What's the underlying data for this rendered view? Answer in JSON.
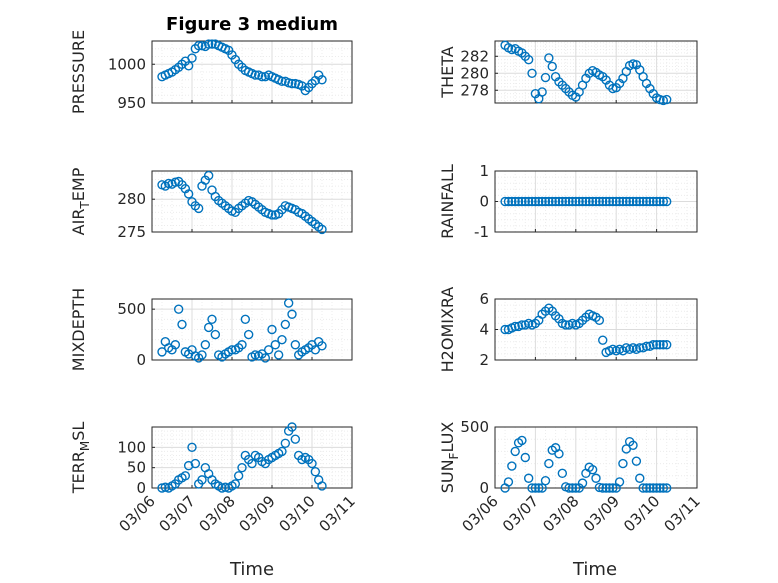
{
  "figure": {
    "title": "Figure 3 medium",
    "xlabel": "Time",
    "date_ticks": [
      "03/06",
      "03/07",
      "03/08",
      "03/09",
      "03/10",
      "03/11"
    ],
    "marker_color": "#0072bd",
    "grid": true,
    "marker": "open-circle"
  },
  "chart_data": [
    {
      "type": "scatter",
      "ylabel": "PRESSURE",
      "ylim": [
        950,
        1030
      ],
      "yticks": [
        950,
        1000
      ],
      "x": [
        "03/06 06:00",
        "03/06 08:00",
        "03/06 10:00",
        "03/06 12:00",
        "03/06 14:00",
        "03/06 16:00",
        "03/06 18:00",
        "03/06 20:00",
        "03/06 22:00",
        "03/07 00:00",
        "03/07 02:00",
        "03/07 04:00",
        "03/07 06:00",
        "03/07 08:00",
        "03/07 10:00",
        "03/07 12:00",
        "03/07 14:00",
        "03/07 16:00",
        "03/07 18:00",
        "03/07 20:00",
        "03/07 22:00",
        "03/08 00:00",
        "03/08 02:00",
        "03/08 04:00",
        "03/08 06:00",
        "03/08 08:00",
        "03/08 10:00",
        "03/08 12:00",
        "03/08 14:00",
        "03/08 16:00",
        "03/08 18:00",
        "03/08 20:00",
        "03/08 22:00",
        "03/09 00:00",
        "03/09 02:00",
        "03/09 04:00",
        "03/09 06:00",
        "03/09 08:00",
        "03/09 10:00",
        "03/09 12:00",
        "03/09 14:00",
        "03/09 16:00",
        "03/09 18:00",
        "03/09 20:00",
        "03/09 22:00",
        "03/10 00:00",
        "03/10 02:00",
        "03/10 04:00",
        "03/10 06:00"
      ],
      "y": [
        984,
        986,
        988,
        990,
        993,
        996,
        1000,
        1004,
        998,
        1008,
        1020,
        1024,
        1024,
        1023,
        1026,
        1026,
        1026,
        1024,
        1022,
        1020,
        1018,
        1012,
        1006,
        1000,
        996,
        992,
        990,
        988,
        986,
        986,
        984,
        984,
        986,
        984,
        982,
        980,
        978,
        978,
        976,
        975,
        975,
        974,
        972,
        966,
        970,
        975,
        979,
        986,
        980
      ]
    },
    {
      "type": "scatter",
      "ylabel": "THETA",
      "ylim": [
        276.5,
        283.8
      ],
      "yticks": [
        278,
        280,
        282
      ],
      "x": [
        "03/06 06:00",
        "03/06 08:00",
        "03/06 10:00",
        "03/06 12:00",
        "03/06 14:00",
        "03/06 16:00",
        "03/06 18:00",
        "03/06 20:00",
        "03/06 22:00",
        "03/07 00:00",
        "03/07 02:00",
        "03/07 04:00",
        "03/07 06:00",
        "03/07 08:00",
        "03/07 10:00",
        "03/07 12:00",
        "03/07 14:00",
        "03/07 16:00",
        "03/07 18:00",
        "03/07 20:00",
        "03/07 22:00",
        "03/08 00:00",
        "03/08 02:00",
        "03/08 04:00",
        "03/08 06:00",
        "03/08 08:00",
        "03/08 10:00",
        "03/08 12:00",
        "03/08 14:00",
        "03/08 16:00",
        "03/08 18:00",
        "03/08 20:00",
        "03/08 22:00",
        "03/09 00:00",
        "03/09 02:00",
        "03/09 04:00",
        "03/09 06:00",
        "03/09 08:00",
        "03/09 10:00",
        "03/09 12:00",
        "03/09 14:00",
        "03/09 16:00",
        "03/09 18:00",
        "03/09 20:00",
        "03/09 22:00",
        "03/10 00:00",
        "03/10 02:00",
        "03/10 04:00",
        "03/10 06:00"
      ],
      "y": [
        283.3,
        283.0,
        282.8,
        282.9,
        282.6,
        282.4,
        282.0,
        281.6,
        280.0,
        277.6,
        277.0,
        277.8,
        279.5,
        281.8,
        280.8,
        279.6,
        279.0,
        278.6,
        278.2,
        277.8,
        277.4,
        277.2,
        277.8,
        278.6,
        279.4,
        280.0,
        280.3,
        280.1,
        279.8,
        279.6,
        279.2,
        278.6,
        278.2,
        278.3,
        278.8,
        279.4,
        280.2,
        280.9,
        281.1,
        281.0,
        280.4,
        279.6,
        278.8,
        278.2,
        277.6,
        277.1,
        276.9,
        276.8,
        276.9
      ]
    },
    {
      "type": "scatter",
      "ylabel": "AIR_TEMP",
      "ylim": [
        275,
        284.3
      ],
      "yticks": [
        275,
        280
      ],
      "x": [
        "03/06 06:00",
        "03/06 08:00",
        "03/06 10:00",
        "03/06 12:00",
        "03/06 14:00",
        "03/06 16:00",
        "03/06 18:00",
        "03/06 20:00",
        "03/06 22:00",
        "03/07 00:00",
        "03/07 02:00",
        "03/07 04:00",
        "03/07 06:00",
        "03/07 08:00",
        "03/07 10:00",
        "03/07 12:00",
        "03/07 14:00",
        "03/07 16:00",
        "03/07 18:00",
        "03/07 20:00",
        "03/07 22:00",
        "03/08 00:00",
        "03/08 02:00",
        "03/08 04:00",
        "03/08 06:00",
        "03/08 08:00",
        "03/08 10:00",
        "03/08 12:00",
        "03/08 14:00",
        "03/08 16:00",
        "03/08 18:00",
        "03/08 20:00",
        "03/08 22:00",
        "03/09 00:00",
        "03/09 02:00",
        "03/09 04:00",
        "03/09 06:00",
        "03/09 08:00",
        "03/09 10:00",
        "03/09 12:00",
        "03/09 14:00",
        "03/09 16:00",
        "03/09 18:00",
        "03/09 20:00",
        "03/09 22:00",
        "03/10 00:00",
        "03/10 02:00",
        "03/10 04:00",
        "03/10 06:00"
      ],
      "y": [
        282.2,
        282.0,
        282.4,
        282.3,
        282.6,
        282.7,
        282.2,
        281.6,
        280.8,
        279.6,
        279.0,
        278.6,
        282.0,
        282.9,
        283.6,
        281.4,
        280.4,
        279.8,
        279.4,
        279.0,
        278.6,
        278.2,
        278.0,
        278.6,
        279.0,
        279.4,
        279.8,
        279.6,
        279.2,
        278.8,
        278.4,
        278.0,
        277.8,
        277.6,
        277.6,
        277.8,
        278.4,
        279.0,
        278.8,
        278.6,
        278.4,
        278.0,
        277.8,
        277.4,
        277.0,
        276.6,
        276.2,
        275.8,
        275.4
      ]
    },
    {
      "type": "scatter",
      "ylabel": "RAINFALL",
      "ylim": [
        -1,
        1
      ],
      "yticks": [
        -1,
        0,
        1
      ],
      "x": [
        "03/06 06:00",
        "03/06 08:00",
        "03/06 10:00",
        "03/06 12:00",
        "03/06 14:00",
        "03/06 16:00",
        "03/06 18:00",
        "03/06 20:00",
        "03/06 22:00",
        "03/07 00:00",
        "03/07 02:00",
        "03/07 04:00",
        "03/07 06:00",
        "03/07 08:00",
        "03/07 10:00",
        "03/07 12:00",
        "03/07 14:00",
        "03/07 16:00",
        "03/07 18:00",
        "03/07 20:00",
        "03/07 22:00",
        "03/08 00:00",
        "03/08 02:00",
        "03/08 04:00",
        "03/08 06:00",
        "03/08 08:00",
        "03/08 10:00",
        "03/08 12:00",
        "03/08 14:00",
        "03/08 16:00",
        "03/08 18:00",
        "03/08 20:00",
        "03/08 22:00",
        "03/09 00:00",
        "03/09 02:00",
        "03/09 04:00",
        "03/09 06:00",
        "03/09 08:00",
        "03/09 10:00",
        "03/09 12:00",
        "03/09 14:00",
        "03/09 16:00",
        "03/09 18:00",
        "03/09 20:00",
        "03/09 22:00",
        "03/10 00:00",
        "03/10 02:00",
        "03/10 04:00",
        "03/10 06:00"
      ],
      "y": [
        0,
        0,
        0,
        0,
        0,
        0,
        0,
        0,
        0,
        0,
        0,
        0,
        0,
        0,
        0,
        0,
        0,
        0,
        0,
        0,
        0,
        0,
        0,
        0,
        0,
        0,
        0,
        0,
        0,
        0,
        0,
        0,
        0,
        0,
        0,
        0,
        0,
        0,
        0,
        0,
        0,
        0,
        0,
        0,
        0,
        0,
        0,
        0,
        0
      ]
    },
    {
      "type": "scatter",
      "ylabel": "MIXDEPTH",
      "ylim": [
        0,
        600
      ],
      "yticks": [
        0,
        500
      ],
      "x": [
        "03/06 06:00",
        "03/06 08:00",
        "03/06 10:00",
        "03/06 12:00",
        "03/06 14:00",
        "03/06 16:00",
        "03/06 18:00",
        "03/06 20:00",
        "03/06 22:00",
        "03/07 00:00",
        "03/07 02:00",
        "03/07 04:00",
        "03/07 06:00",
        "03/07 08:00",
        "03/07 10:00",
        "03/07 12:00",
        "03/07 14:00",
        "03/07 16:00",
        "03/07 18:00",
        "03/07 20:00",
        "03/07 22:00",
        "03/08 00:00",
        "03/08 02:00",
        "03/08 04:00",
        "03/08 06:00",
        "03/08 08:00",
        "03/08 10:00",
        "03/08 12:00",
        "03/08 14:00",
        "03/08 16:00",
        "03/08 18:00",
        "03/08 20:00",
        "03/08 22:00",
        "03/09 00:00",
        "03/09 02:00",
        "03/09 04:00",
        "03/09 06:00",
        "03/09 08:00",
        "03/09 10:00",
        "03/09 12:00",
        "03/09 14:00",
        "03/09 16:00",
        "03/09 18:00",
        "03/09 20:00",
        "03/09 22:00",
        "03/10 00:00",
        "03/10 02:00",
        "03/10 04:00",
        "03/10 06:00"
      ],
      "y": [
        80,
        180,
        120,
        100,
        150,
        500,
        350,
        80,
        60,
        100,
        40,
        20,
        50,
        150,
        320,
        400,
        250,
        50,
        30,
        60,
        80,
        100,
        100,
        120,
        150,
        400,
        250,
        30,
        50,
        40,
        60,
        20,
        100,
        300,
        150,
        50,
        200,
        350,
        560,
        450,
        150,
        50,
        80,
        100,
        120,
        150,
        100,
        180,
        140
      ]
    },
    {
      "type": "scatter",
      "ylabel": "H2OMIXRA",
      "ylim": [
        2,
        6
      ],
      "yticks": [
        2,
        4,
        6
      ],
      "x": [
        "03/06 06:00",
        "03/06 08:00",
        "03/06 10:00",
        "03/06 12:00",
        "03/06 14:00",
        "03/06 16:00",
        "03/06 18:00",
        "03/06 20:00",
        "03/06 22:00",
        "03/07 00:00",
        "03/07 02:00",
        "03/07 04:00",
        "03/07 06:00",
        "03/07 08:00",
        "03/07 10:00",
        "03/07 12:00",
        "03/07 14:00",
        "03/07 16:00",
        "03/07 18:00",
        "03/07 20:00",
        "03/07 22:00",
        "03/08 00:00",
        "03/08 02:00",
        "03/08 04:00",
        "03/08 06:00",
        "03/08 08:00",
        "03/08 10:00",
        "03/08 12:00",
        "03/08 14:00",
        "03/08 16:00",
        "03/08 18:00",
        "03/08 20:00",
        "03/08 22:00",
        "03/09 00:00",
        "03/09 02:00",
        "03/09 04:00",
        "03/09 06:00",
        "03/09 08:00",
        "03/09 10:00",
        "03/09 12:00",
        "03/09 14:00",
        "03/09 16:00",
        "03/09 18:00",
        "03/09 20:00",
        "03/09 22:00",
        "03/10 00:00",
        "03/10 02:00",
        "03/10 04:00",
        "03/10 06:00"
      ],
      "y": [
        4.0,
        4.0,
        4.1,
        4.2,
        4.2,
        4.3,
        4.3,
        4.4,
        4.3,
        4.4,
        4.6,
        5.0,
        5.2,
        5.4,
        5.2,
        4.9,
        4.7,
        4.4,
        4.3,
        4.3,
        4.4,
        4.3,
        4.4,
        4.6,
        4.8,
        5.0,
        4.9,
        4.8,
        4.6,
        3.3,
        2.5,
        2.6,
        2.7,
        2.6,
        2.7,
        2.6,
        2.8,
        2.7,
        2.8,
        2.7,
        2.8,
        2.8,
        2.9,
        2.9,
        3.0,
        3.0,
        3.0,
        3.0,
        3.0
      ]
    },
    {
      "type": "scatter",
      "ylabel": "TERR_MSL",
      "ylim": [
        0,
        150
      ],
      "yticks": [
        0,
        50,
        100
      ],
      "x": [
        "03/06 06:00",
        "03/06 08:00",
        "03/06 10:00",
        "03/06 12:00",
        "03/06 14:00",
        "03/06 16:00",
        "03/06 18:00",
        "03/06 20:00",
        "03/06 22:00",
        "03/07 00:00",
        "03/07 02:00",
        "03/07 04:00",
        "03/07 06:00",
        "03/07 08:00",
        "03/07 10:00",
        "03/07 12:00",
        "03/07 14:00",
        "03/07 16:00",
        "03/07 18:00",
        "03/07 20:00",
        "03/07 22:00",
        "03/08 00:00",
        "03/08 02:00",
        "03/08 04:00",
        "03/08 06:00",
        "03/08 08:00",
        "03/08 10:00",
        "03/08 12:00",
        "03/08 14:00",
        "03/08 16:00",
        "03/08 18:00",
        "03/08 20:00",
        "03/08 22:00",
        "03/09 00:00",
        "03/09 02:00",
        "03/09 04:00",
        "03/09 06:00",
        "03/09 08:00",
        "03/09 10:00",
        "03/09 12:00",
        "03/09 14:00",
        "03/09 16:00",
        "03/09 18:00",
        "03/09 20:00",
        "03/09 22:00",
        "03/10 00:00",
        "03/10 02:00",
        "03/10 04:00",
        "03/10 06:00"
      ],
      "y": [
        0,
        2,
        0,
        5,
        10,
        20,
        25,
        30,
        55,
        100,
        60,
        10,
        20,
        50,
        35,
        20,
        10,
        5,
        0,
        2,
        0,
        5,
        10,
        30,
        50,
        80,
        70,
        60,
        80,
        75,
        65,
        60,
        70,
        75,
        80,
        85,
        90,
        110,
        140,
        150,
        120,
        80,
        70,
        75,
        70,
        60,
        40,
        20,
        5
      ]
    },
    {
      "type": "scatter",
      "ylabel": "SUN_FLUX",
      "ylim": [
        0,
        500
      ],
      "yticks": [
        0,
        500
      ],
      "x": [
        "03/06 06:00",
        "03/06 08:00",
        "03/06 10:00",
        "03/06 12:00",
        "03/06 14:00",
        "03/06 16:00",
        "03/06 18:00",
        "03/06 20:00",
        "03/06 22:00",
        "03/07 00:00",
        "03/07 02:00",
        "03/07 04:00",
        "03/07 06:00",
        "03/07 08:00",
        "03/07 10:00",
        "03/07 12:00",
        "03/07 14:00",
        "03/07 16:00",
        "03/07 18:00",
        "03/07 20:00",
        "03/07 22:00",
        "03/08 00:00",
        "03/08 02:00",
        "03/08 04:00",
        "03/08 06:00",
        "03/08 08:00",
        "03/08 10:00",
        "03/08 12:00",
        "03/08 14:00",
        "03/08 16:00",
        "03/08 18:00",
        "03/08 20:00",
        "03/08 22:00",
        "03/09 00:00",
        "03/09 02:00",
        "03/09 04:00",
        "03/09 06:00",
        "03/09 08:00",
        "03/09 10:00",
        "03/09 12:00",
        "03/09 14:00",
        "03/09 16:00",
        "03/09 18:00",
        "03/09 20:00",
        "03/09 22:00",
        "03/10 00:00",
        "03/10 02:00",
        "03/10 04:00",
        "03/10 06:00"
      ],
      "y": [
        0,
        50,
        180,
        300,
        370,
        390,
        250,
        80,
        0,
        0,
        0,
        0,
        60,
        200,
        310,
        330,
        280,
        120,
        10,
        0,
        0,
        0,
        0,
        40,
        120,
        170,
        150,
        80,
        5,
        0,
        0,
        0,
        0,
        0,
        50,
        200,
        320,
        380,
        350,
        220,
        80,
        0,
        0,
        0,
        0,
        0,
        0,
        0,
        0
      ]
    }
  ]
}
